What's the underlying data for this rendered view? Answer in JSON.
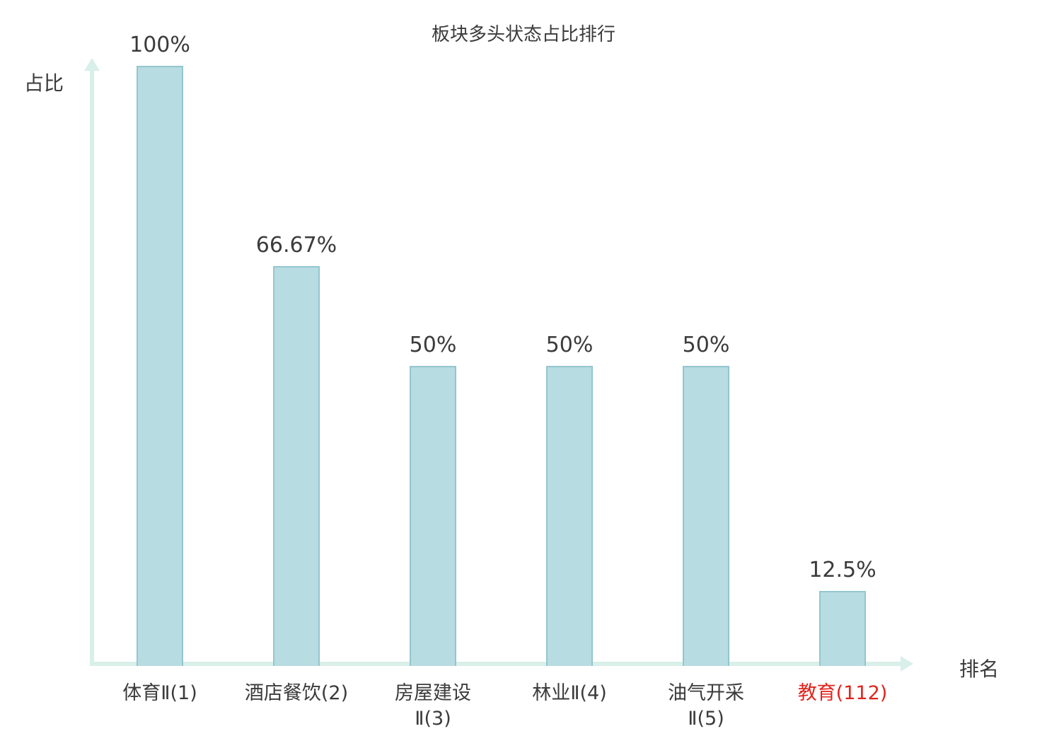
{
  "title": "板块多头状态占比排行",
  "axes": {
    "y_label": "占比",
    "x_label": "排名"
  },
  "colors": {
    "bar_fill": "#b7dce1",
    "bar_border": "#94c6ce",
    "axis": "#d9efe9",
    "text": "#3b3b3b",
    "highlight": "#e3231b"
  },
  "chart_data": {
    "type": "bar",
    "title": "板块多头状态占比排行",
    "xlabel": "排名",
    "ylabel": "占比",
    "categories": [
      "体育Ⅱ(1)",
      "酒店餐饮(2)",
      "房屋建设Ⅱ(3)",
      "林业Ⅱ(4)",
      "油气开采Ⅱ(5)",
      "教育(112)"
    ],
    "category_lines": [
      [
        "体育Ⅱ(1)"
      ],
      [
        "酒店餐饮(2)"
      ],
      [
        "房屋建设",
        "Ⅱ(3)"
      ],
      [
        "林业Ⅱ(4)"
      ],
      [
        "油气开采",
        "Ⅱ(5)"
      ],
      [
        "教育(112)"
      ]
    ],
    "values": [
      100,
      66.67,
      50,
      50,
      50,
      12.5
    ],
    "value_labels": [
      "100%",
      "66.67%",
      "50%",
      "50%",
      "50%",
      "12.5%"
    ],
    "highlight_category_index": 5,
    "ylim": [
      0,
      100
    ],
    "grid": false,
    "legend": false
  }
}
